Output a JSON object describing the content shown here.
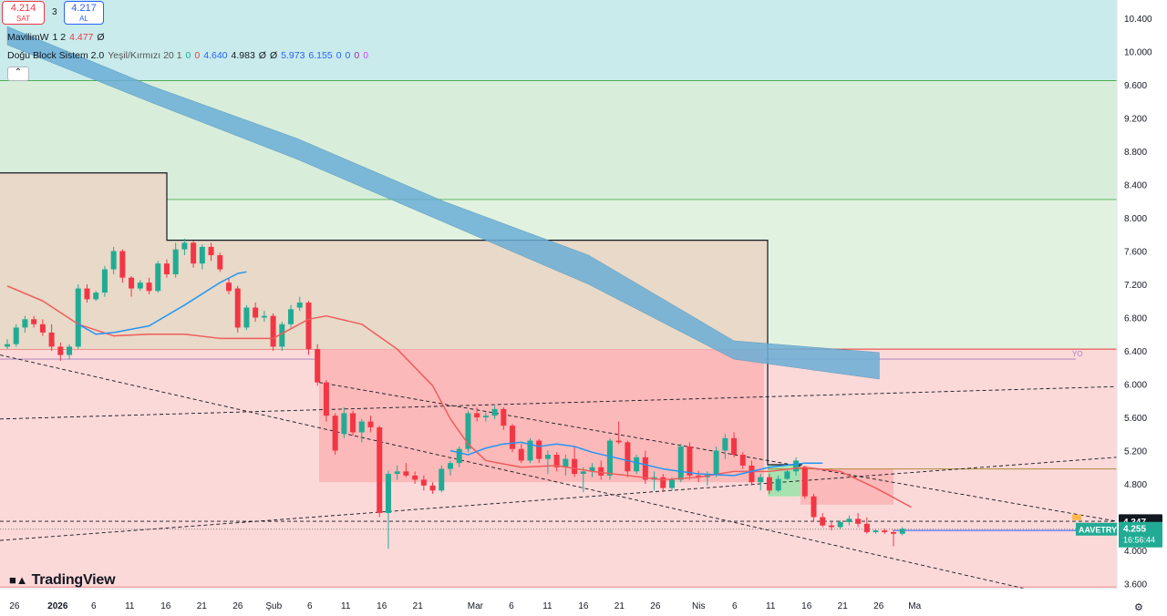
{
  "order_panel": {
    "sell_price": "4.214",
    "sell_label": "SAT",
    "spread": "3",
    "buy_price": "4.217",
    "buy_label": "AL"
  },
  "legend": {
    "ind1": {
      "name": "MavilimW",
      "params": "1 2",
      "value": "4.477",
      "extra": "Ø"
    },
    "ind2": {
      "name": "Doğu Block Sistem 2.0",
      "params": "Yeşil/Kırmızı 20 1",
      "values": [
        "0",
        "0",
        "4.640",
        "4.983",
        "Ø",
        "Ø",
        "5.973",
        "6.155",
        "0",
        "0",
        "0",
        "0"
      ]
    },
    "collapse_icon": "chevron-up-icon"
  },
  "brand": "TradingView",
  "colors": {
    "up": "#22ab94",
    "down": "#f23645",
    "band": "#6baed6",
    "red_line": "#f05c5c",
    "blue_line": "#2196f3"
  },
  "chart_data": {
    "type": "candlestick",
    "symbol": "AAVETRY",
    "last_price": "4.255",
    "countdown": "16:56:44",
    "marker_price": "4.347",
    "zone_label": "YO",
    "ylim": [
      3.5,
      10.65
    ],
    "y_ticks": [
      "10.400",
      "10.000",
      "9.600",
      "9.200",
      "8.800",
      "8.400",
      "8.000",
      "7.600",
      "7.200",
      "6.800",
      "6.400",
      "6.000",
      "5.600",
      "5.200",
      "4.800",
      "4.400",
      "4.000",
      "3.600"
    ],
    "x_ticks": [
      {
        "i": 1,
        "label": "26"
      },
      {
        "i": 7,
        "label": "2026"
      },
      {
        "i": 12,
        "label": "6"
      },
      {
        "i": 17,
        "label": "11"
      },
      {
        "i": 22,
        "label": "16"
      },
      {
        "i": 27,
        "label": "21"
      },
      {
        "i": 32,
        "label": "26"
      },
      {
        "i": 37,
        "label": "Şub"
      },
      {
        "i": 42,
        "label": "6"
      },
      {
        "i": 47,
        "label": "11"
      },
      {
        "i": 52,
        "label": "16"
      },
      {
        "i": 57,
        "label": "21"
      },
      {
        "i": 65,
        "label": "Mar"
      },
      {
        "i": 70,
        "label": "6"
      },
      {
        "i": 75,
        "label": "11"
      },
      {
        "i": 80,
        "label": "16"
      },
      {
        "i": 85,
        "label": "21"
      },
      {
        "i": 90,
        "label": "26"
      },
      {
        "i": 96,
        "label": "Nis"
      },
      {
        "i": 101,
        "label": "6"
      },
      {
        "i": 106,
        "label": "11"
      },
      {
        "i": 111,
        "label": "16"
      },
      {
        "i": 116,
        "label": "21"
      },
      {
        "i": 121,
        "label": "26"
      },
      {
        "i": 126,
        "label": "Ma"
      }
    ],
    "candles": [
      [
        0,
        6.45,
        6.54,
        6.42,
        6.48
      ],
      [
        1,
        6.48,
        6.72,
        6.45,
        6.68
      ],
      [
        2,
        6.68,
        6.82,
        6.62,
        6.78
      ],
      [
        3,
        6.78,
        6.82,
        6.68,
        6.72
      ],
      [
        4,
        6.72,
        6.78,
        6.58,
        6.62
      ],
      [
        5,
        6.62,
        6.72,
        6.4,
        6.45
      ],
      [
        6,
        6.45,
        6.5,
        6.28,
        6.35
      ],
      [
        7,
        6.35,
        6.48,
        6.3,
        6.45
      ],
      [
        8,
        6.45,
        7.2,
        6.42,
        7.15
      ],
      [
        9,
        7.15,
        7.2,
        6.98,
        7.02
      ],
      [
        10,
        7.02,
        7.12,
        7.0,
        7.1
      ],
      [
        11,
        7.1,
        7.42,
        7.05,
        7.38
      ],
      [
        12,
        7.38,
        7.65,
        7.32,
        7.6
      ],
      [
        13,
        7.6,
        7.62,
        7.22,
        7.28
      ],
      [
        14,
        7.28,
        7.3,
        7.05,
        7.15
      ],
      [
        15,
        7.15,
        7.25,
        7.12,
        7.22
      ],
      [
        16,
        7.22,
        7.28,
        7.08,
        7.12
      ],
      [
        17,
        7.12,
        7.48,
        7.1,
        7.45
      ],
      [
        18,
        7.45,
        7.5,
        7.28,
        7.32
      ],
      [
        19,
        7.32,
        7.7,
        7.28,
        7.62
      ],
      [
        20,
        7.62,
        7.75,
        7.55,
        7.7
      ],
      [
        21,
        7.7,
        7.72,
        7.4,
        7.45
      ],
      [
        22,
        7.45,
        7.68,
        7.38,
        7.65
      ],
      [
        23,
        7.65,
        7.7,
        7.48,
        7.55
      ],
      [
        24,
        7.55,
        7.58,
        7.35,
        7.38
      ],
      [
        25,
        7.22,
        7.28,
        7.08,
        7.12
      ],
      [
        26,
        7.15,
        7.18,
        6.62,
        6.68
      ],
      [
        27,
        6.68,
        6.95,
        6.65,
        6.92
      ],
      [
        28,
        6.92,
        6.98,
        6.75,
        6.8
      ],
      [
        29,
        6.8,
        6.88,
        6.75,
        6.82
      ],
      [
        30,
        6.82,
        6.85,
        6.4,
        6.45
      ],
      [
        31,
        6.45,
        6.75,
        6.4,
        6.72
      ],
      [
        32,
        6.72,
        6.95,
        6.68,
        6.9
      ],
      [
        33,
        6.92,
        7.05,
        6.88,
        6.98
      ],
      [
        34,
        6.98,
        7.0,
        6.35,
        6.42
      ],
      [
        35,
        6.42,
        6.48,
        5.98,
        6.02
      ],
      [
        36,
        6.02,
        6.05,
        5.55,
        5.62
      ],
      [
        37,
        5.62,
        5.65,
        5.15,
        5.2
      ],
      [
        38,
        5.4,
        5.72,
        5.35,
        5.65
      ],
      [
        39,
        5.65,
        5.68,
        5.38,
        5.42
      ],
      [
        40,
        5.42,
        5.58,
        5.3,
        5.55
      ],
      [
        41,
        5.55,
        5.62,
        5.42,
        5.48
      ],
      [
        42,
        5.48,
        5.5,
        4.4,
        4.45
      ],
      [
        43,
        4.45,
        4.96,
        4.02,
        4.92
      ],
      [
        44,
        4.92,
        5.02,
        4.85,
        4.95
      ],
      [
        45,
        4.95,
        5.05,
        4.88,
        4.9
      ],
      [
        46,
        4.9,
        4.95,
        4.8,
        4.85
      ],
      [
        47,
        4.85,
        4.9,
        4.72,
        4.78
      ],
      [
        48,
        4.78,
        4.82,
        4.68,
        4.72
      ],
      [
        49,
        4.72,
        5.02,
        4.7,
        4.98
      ],
      [
        50,
        4.98,
        5.08,
        4.9,
        5.05
      ],
      [
        51,
        5.05,
        5.25,
        5.0,
        5.22
      ],
      [
        52,
        5.22,
        5.68,
        5.18,
        5.65
      ],
      [
        53,
        5.65,
        5.72,
        5.55,
        5.6
      ],
      [
        54,
        5.6,
        5.66,
        5.55,
        5.62
      ],
      [
        55,
        5.62,
        5.74,
        5.58,
        5.7
      ],
      [
        56,
        5.7,
        5.72,
        5.45,
        5.5
      ],
      [
        57,
        5.5,
        5.52,
        5.18,
        5.22
      ],
      [
        58,
        5.22,
        5.28,
        5.05,
        5.08
      ],
      [
        59,
        5.08,
        5.35,
        5.05,
        5.32
      ],
      [
        60,
        5.32,
        5.34,
        5.05,
        5.1
      ],
      [
        61,
        5.1,
        5.2,
        4.92,
        5.15
      ],
      [
        62,
        5.15,
        5.18,
        4.95,
        5.0
      ],
      [
        63,
        5.0,
        5.15,
        4.9,
        5.1
      ],
      [
        64,
        5.1,
        5.25,
        4.88,
        4.92
      ],
      [
        65,
        4.92,
        5.0,
        4.7,
        4.95
      ],
      [
        66,
        4.95,
        5.05,
        4.88,
        5.0
      ],
      [
        67,
        5.0,
        5.08,
        4.85,
        4.9
      ],
      [
        68,
        4.9,
        5.35,
        4.85,
        5.32
      ],
      [
        69,
        5.32,
        5.55,
        5.28,
        5.3
      ],
      [
        70,
        5.3,
        5.32,
        4.88,
        4.95
      ],
      [
        71,
        4.95,
        5.15,
        4.92,
        5.12
      ],
      [
        72,
        5.12,
        5.2,
        4.8,
        4.85
      ],
      [
        73,
        4.85,
        4.95,
        4.72,
        4.88
      ],
      [
        74,
        4.88,
        4.92,
        4.7,
        4.75
      ],
      [
        75,
        4.75,
        4.88,
        4.72,
        4.85
      ],
      [
        76,
        4.85,
        5.28,
        4.82,
        5.25
      ],
      [
        77,
        5.25,
        5.3,
        4.85,
        4.9
      ],
      [
        78,
        4.9,
        4.96,
        4.82,
        4.88
      ],
      [
        79,
        4.88,
        4.95,
        4.78,
        4.92
      ],
      [
        80,
        4.92,
        5.25,
        4.88,
        5.2
      ],
      [
        81,
        5.2,
        5.4,
        5.1,
        5.35
      ],
      [
        82,
        5.35,
        5.42,
        5.12,
        5.15
      ],
      [
        83,
        5.15,
        5.18,
        4.98,
        5.02
      ],
      [
        84,
        5.02,
        5.08,
        4.78,
        4.82
      ],
      [
        85,
        4.82,
        4.92,
        4.72,
        4.88
      ],
      [
        86,
        4.88,
        4.92,
        4.68,
        4.72
      ],
      [
        87,
        4.72,
        4.9,
        4.7,
        4.86
      ],
      [
        88,
        4.86,
        4.98,
        4.85,
        4.95
      ],
      [
        89,
        4.95,
        5.12,
        4.9,
        5.08
      ],
      [
        90,
        5.0,
        5.02,
        4.62,
        4.65
      ],
      [
        91,
        4.65,
        4.68,
        4.35,
        4.4
      ],
      [
        92,
        4.4,
        4.45,
        4.28,
        4.3
      ],
      [
        93,
        4.3,
        4.34,
        4.24,
        4.28
      ],
      [
        94,
        4.28,
        4.36,
        4.26,
        4.34
      ],
      [
        95,
        4.34,
        4.42,
        4.3,
        4.38
      ],
      [
        96,
        4.38,
        4.45,
        4.28,
        4.32
      ],
      [
        97,
        4.32,
        4.4,
        4.2,
        4.22
      ],
      [
        98,
        4.22,
        4.26,
        4.2,
        4.24
      ],
      [
        99,
        4.24,
        4.26,
        4.2,
        4.22
      ],
      [
        100,
        4.22,
        4.25,
        4.05,
        4.2
      ],
      [
        101,
        4.2,
        4.28,
        4.18,
        4.26
      ]
    ],
    "red_line": [
      [
        0,
        7.18
      ],
      [
        4,
        7.0
      ],
      [
        8,
        6.72
      ],
      [
        12,
        6.58
      ],
      [
        16,
        6.6
      ],
      [
        20,
        6.6
      ],
      [
        24,
        6.55
      ],
      [
        30,
        6.55
      ],
      [
        34,
        6.78
      ],
      [
        36,
        6.82
      ],
      [
        40,
        6.72
      ],
      [
        44,
        6.42
      ],
      [
        48,
        5.98
      ],
      [
        50,
        5.58
      ],
      [
        52,
        5.28
      ],
      [
        54,
        5.08
      ],
      [
        58,
        5.0
      ],
      [
        62,
        5.02
      ],
      [
        66,
        4.95
      ],
      [
        70,
        4.9
      ],
      [
        74,
        4.85
      ],
      [
        78,
        4.88
      ],
      [
        82,
        4.95
      ],
      [
        86,
        4.95
      ],
      [
        90,
        5.0
      ],
      [
        94,
        4.95
      ],
      [
        98,
        4.75
      ],
      [
        102,
        4.52
      ]
    ],
    "blue_line": [
      [
        8,
        6.72
      ],
      [
        10,
        6.6
      ],
      [
        12,
        6.62
      ],
      [
        16,
        6.7
      ],
      [
        20,
        6.95
      ],
      [
        24,
        7.22
      ],
      [
        26,
        7.33
      ],
      [
        27,
        7.35
      ]
    ],
    "blue_line2": [
      [
        50,
        5.2
      ],
      [
        52,
        5.15
      ],
      [
        54,
        5.23
      ],
      [
        56,
        5.28
      ],
      [
        58,
        5.3
      ],
      [
        60,
        5.25
      ],
      [
        62,
        5.28
      ],
      [
        64,
        5.25
      ],
      [
        66,
        5.18
      ],
      [
        70,
        5.08
      ],
      [
        74,
        4.98
      ],
      [
        78,
        4.92
      ],
      [
        82,
        4.9
      ],
      [
        86,
        5.0
      ],
      [
        90,
        5.05
      ],
      [
        92,
        5.05
      ]
    ],
    "band_upper": [
      [
        0,
        10.3
      ],
      [
        20,
        9.58
      ],
      [
        40,
        8.95
      ],
      [
        60,
        8.2
      ],
      [
        80,
        7.55
      ],
      [
        100,
        6.52
      ],
      [
        120,
        6.38
      ]
    ],
    "band_lower": [
      [
        0,
        10.08
      ],
      [
        20,
        9.38
      ],
      [
        40,
        8.7
      ],
      [
        60,
        7.95
      ],
      [
        80,
        7.2
      ],
      [
        100,
        6.3
      ],
      [
        120,
        6.06
      ]
    ]
  }
}
